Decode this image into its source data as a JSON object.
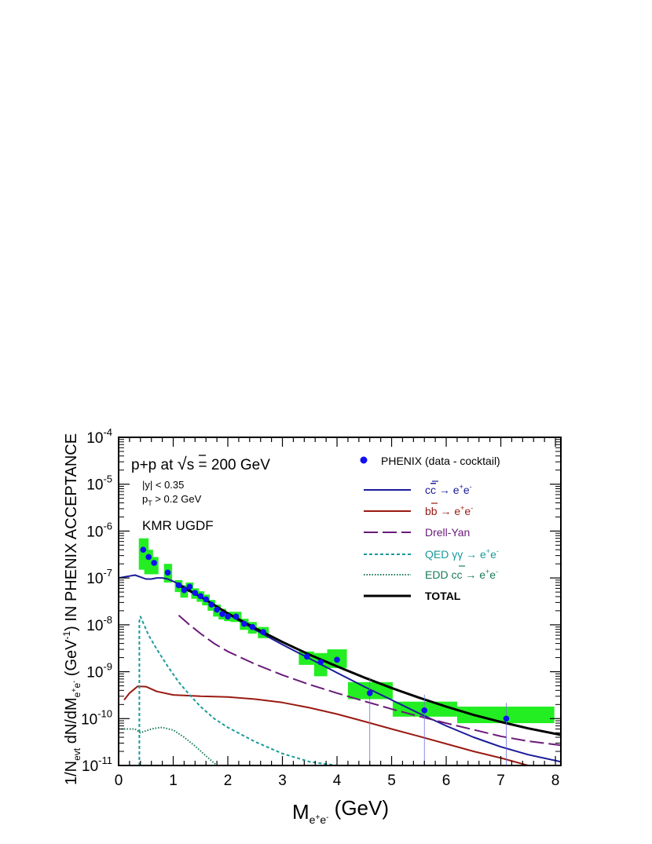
{
  "chart_data": {
    "type": "line",
    "xlabel": "M_{e+e-} (GeV)",
    "ylabel": "1/N_evt dN/dM_{e+e-} (GeV^-1) IN PHENIX ACCEPTANCE",
    "xlim": [
      0,
      8.1
    ],
    "ylim": [
      1e-11,
      0.0001
    ],
    "yscale": "log",
    "x_ticks": [
      "0",
      "1",
      "2",
      "3",
      "4",
      "5",
      "6",
      "7",
      "8"
    ],
    "y_ticks": [
      "10^-11",
      "10^-10",
      "10^-9",
      "10^-8",
      "10^-7",
      "10^-6",
      "10^-5",
      "10^-4"
    ],
    "grid": false,
    "legend_position": "top-right",
    "annotations": {
      "system": "p+p  at √s = 200 GeV",
      "cut_y": "|y| < 0.35",
      "cut_pt": "p_T > 0.2 GeV",
      "model": "KMR UGDF"
    },
    "legend": [
      {
        "label": "PHENIX (data - cocktail)",
        "style": "marker",
        "color": "#1010f0"
      },
      {
        "label": "cc̄ → e+e-",
        "style": "solid",
        "color": "#1a1a9a"
      },
      {
        "label": "bb̄ → e+e-",
        "style": "solid",
        "color": "#9a1a12"
      },
      {
        "label": "Drell-Yan",
        "style": "longdash",
        "color": "#6a1a7a"
      },
      {
        "label": "QED γγ → e+e-",
        "style": "dashed",
        "color": "#1a9a9a"
      },
      {
        "label": "EDD cc̄ → e+e-",
        "style": "dotted",
        "color": "#1a7a5a"
      },
      {
        "label": "TOTAL",
        "style": "thick",
        "color": "#000000"
      }
    ],
    "data_points": [
      {
        "x": 0.45,
        "y": 4e-07,
        "sys": [
          0.37,
          0.55,
          1.5e-07,
          7e-07
        ]
      },
      {
        "x": 0.55,
        "y": 2.8e-07,
        "sys": [
          0.47,
          0.63,
          1.2e-07,
          4e-07
        ]
      },
      {
        "x": 0.65,
        "y": 2.1e-07,
        "sys": [
          0.57,
          0.73,
          1.2e-07,
          2.8e-07
        ]
      },
      {
        "x": 0.9,
        "y": 1.3e-07,
        "sys": [
          0.83,
          0.98,
          8e-08,
          2e-07
        ]
      },
      {
        "x": 1.1,
        "y": 7e-08,
        "sys": [
          1.03,
          1.17,
          5e-08,
          9e-08
        ]
      },
      {
        "x": 1.2,
        "y": 5.5e-08,
        "sys": [
          1.13,
          1.27,
          3.8e-08,
          7e-08
        ]
      },
      {
        "x": 1.3,
        "y": 6.5e-08,
        "sys": [
          1.23,
          1.37,
          5e-08,
          8e-08
        ]
      },
      {
        "x": 1.4,
        "y": 4.8e-08,
        "sys": [
          1.33,
          1.47,
          3.6e-08,
          6e-08
        ]
      },
      {
        "x": 1.5,
        "y": 4.1e-08,
        "sys": [
          1.43,
          1.57,
          3.1e-08,
          5.2e-08
        ]
      },
      {
        "x": 1.6,
        "y": 3.5e-08,
        "sys": [
          1.53,
          1.67,
          2.6e-08,
          4.4e-08
        ]
      },
      {
        "x": 1.7,
        "y": 2.7e-08,
        "sys": [
          1.63,
          1.77,
          2e-08,
          3.4e-08
        ]
      },
      {
        "x": 1.8,
        "y": 2.1e-08,
        "sys": [
          1.73,
          1.87,
          1.5e-08,
          2.7e-08
        ]
      },
      {
        "x": 1.9,
        "y": 1.7e-08,
        "sys": [
          1.83,
          1.97,
          1.3e-08,
          2.2e-08
        ]
      },
      {
        "x": 2.0,
        "y": 1.5e-08,
        "sys": [
          1.93,
          2.07,
          1.2e-08,
          1.9e-08
        ]
      },
      {
        "x": 2.15,
        "y": 1.5e-08,
        "sys": [
          2.05,
          2.25,
          1.15e-08,
          1.9e-08
        ]
      },
      {
        "x": 2.3,
        "y": 1.05e-08,
        "sys": [
          2.22,
          2.38,
          7.8e-09,
          1.35e-08
        ]
      },
      {
        "x": 2.45,
        "y": 9e-09,
        "sys": [
          2.37,
          2.53,
          6.5e-09,
          1.15e-08
        ]
      },
      {
        "x": 2.65,
        "y": 7e-09,
        "sys": [
          2.55,
          2.75,
          5.2e-09,
          9e-09
        ]
      },
      {
        "x": 3.45,
        "y": 2.1e-09,
        "sys": [
          3.3,
          3.58,
          1.4e-09,
          2.7e-09
        ]
      },
      {
        "x": 3.7,
        "y": 1.6e-09,
        "sys": [
          3.58,
          3.82,
          8e-10,
          2.5e-09
        ]
      },
      {
        "x": 4.0,
        "y": 1.8e-09,
        "sys": [
          3.82,
          4.18,
          1.2e-09,
          3e-09
        ]
      },
      {
        "x": 4.6,
        "y": 3.5e-10,
        "sys": [
          4.2,
          5.02,
          2.6e-10,
          6e-10
        ]
      },
      {
        "x": 5.6,
        "y": 1.5e-10,
        "sys": [
          5.02,
          6.2,
          1.1e-10,
          2.3e-10
        ]
      },
      {
        "x": 7.1,
        "y": 1e-10,
        "sys": [
          6.2,
          7.98,
          8e-11,
          1.8e-10
        ]
      }
    ],
    "series": [
      {
        "name": "cc̄ → e+e-",
        "style": "solid",
        "color": "#1a1a9a",
        "width": 2,
        "x": [
          0.0,
          0.2,
          0.3,
          0.4,
          0.5,
          0.6,
          0.7,
          0.8,
          0.9,
          1.0,
          1.2,
          1.5,
          1.8,
          2.0,
          2.5,
          3.0,
          3.5,
          4.0,
          4.5,
          5.0,
          5.5,
          6.0,
          6.5,
          7.0,
          7.5,
          8.1
        ],
        "y": [
          1e-07,
          1.1e-07,
          1.15e-07,
          1.05e-07,
          9.5e-08,
          9.5e-08,
          1e-07,
          1e-07,
          9.5e-08,
          8.5e-08,
          6.5e-08,
          4e-08,
          2.5e-08,
          1.7e-08,
          7.8e-09,
          3.8e-09,
          1.9e-09,
          9.5e-10,
          4.8e-10,
          2.5e-10,
          1.3e-10,
          7e-11,
          4e-11,
          2.5e-11,
          1.7e-11,
          1.2e-11
        ]
      },
      {
        "name": "bb̄ → e+e-",
        "style": "solid",
        "color": "#9a1a12",
        "width": 2,
        "x": [
          0.1,
          0.2,
          0.35,
          0.5,
          0.7,
          1.0,
          1.5,
          2.0,
          2.5,
          3.0,
          3.5,
          4.0,
          4.5,
          5.0,
          5.5,
          6.0,
          6.5,
          7.0,
          7.5
        ],
        "y": [
          2.5e-10,
          3.5e-10,
          4.9e-10,
          4.8e-10,
          3.8e-10,
          3.2e-10,
          3e-10,
          2.9e-10,
          2.6e-10,
          2.2e-10,
          1.7e-10,
          1.25e-10,
          8.7e-11,
          6e-11,
          4.2e-11,
          2.9e-11,
          2e-11,
          1.45e-11,
          1e-11
        ]
      },
      {
        "name": "Drell-Yan",
        "style": "longdash",
        "color": "#6a1a7a",
        "width": 2,
        "x": [
          1.1,
          1.3,
          1.5,
          1.75,
          2.0,
          2.5,
          3.0,
          3.5,
          4.0,
          4.5,
          5.0,
          5.5,
          6.0,
          6.5,
          7.0,
          7.5,
          8.1
        ],
        "y": [
          1.6e-08,
          1e-08,
          6.5e-09,
          4e-09,
          2.7e-09,
          1.45e-09,
          8.5e-10,
          5.3e-10,
          3.5e-10,
          2.35e-10,
          1.6e-10,
          1.12e-10,
          8e-11,
          5.8e-11,
          4.2e-11,
          3.3e-11,
          2.7e-11
        ]
      },
      {
        "name": "QED γγ → e+e-",
        "style": "dashed",
        "color": "#1a9a9a",
        "width": 2,
        "x": [
          0.38,
          0.38,
          0.4,
          0.45,
          0.55,
          0.7,
          0.9,
          1.1,
          1.3,
          1.5,
          1.75,
          2.0,
          2.5,
          3.0,
          3.5,
          4.0,
          4.3
        ],
        "y": [
          1e-11,
          1.2e-08,
          1.5e-08,
          1.1e-08,
          6e-09,
          3e-09,
          1.3e-09,
          6e-10,
          3.2e-10,
          1.8e-10,
          1e-10,
          6.5e-11,
          3.2e-11,
          1.8e-11,
          1.2e-11,
          1e-11,
          1e-11
        ]
      },
      {
        "name": "EDD cc̄ → e+e-",
        "style": "dotted",
        "color": "#1a7a5a",
        "width": 2,
        "x": [
          0.0,
          0.2,
          0.3,
          0.4,
          0.5,
          0.6,
          0.7,
          0.8,
          1.0,
          1.2,
          1.4,
          1.6,
          1.8
        ],
        "y": [
          6e-11,
          6e-11,
          6e-11,
          5e-11,
          5.5e-11,
          6e-11,
          6.3e-11,
          6.5e-11,
          5.7e-11,
          4e-11,
          2.6e-11,
          1.6e-11,
          1e-11
        ]
      },
      {
        "name": "TOTAL",
        "style": "thick",
        "color": "#000000",
        "width": 3,
        "x": [
          1.1,
          1.5,
          2.0,
          2.5,
          3.0,
          3.5,
          4.0,
          4.5,
          5.0,
          5.5,
          6.0,
          6.5,
          7.0,
          7.5,
          8.1
        ],
        "y": [
          7e-08,
          4e-08,
          1.75e-08,
          8.5e-09,
          4.3e-09,
          2.3e-09,
          1.3e-09,
          7.5e-10,
          4.5e-10,
          2.8e-10,
          1.8e-10,
          1.2e-10,
          8.5e-11,
          6.2e-11,
          4.5e-11
        ]
      }
    ]
  }
}
